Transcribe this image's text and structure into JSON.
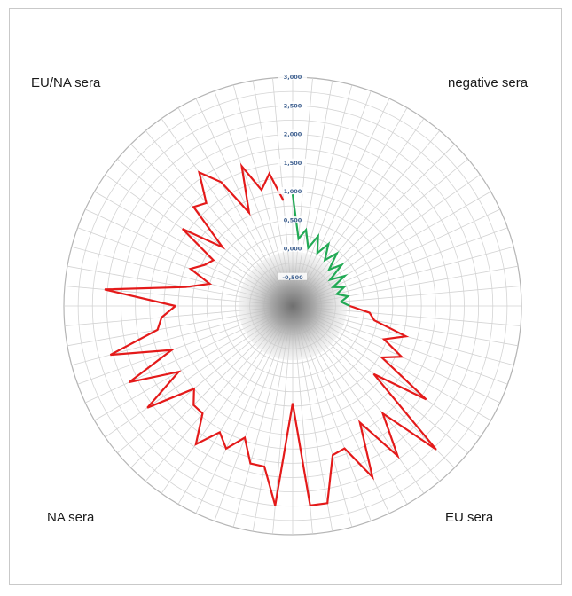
{
  "chart_data": {
    "type": "radar",
    "title": "",
    "corner_labels": {
      "top_left": "EU/NA sera",
      "top_right": "negative sera",
      "bottom_left": "NA sera",
      "bottom_right": "EU sera"
    },
    "radial_axis": {
      "min": -1.0,
      "max": 3.0,
      "ticks": [
        -0.5,
        0.0,
        0.5,
        1.0,
        1.5,
        2.0,
        2.5,
        3.0
      ],
      "tick_labels": [
        "-0,500",
        "0,000",
        "0,500",
        "1,000",
        "1,500",
        "2,000",
        "2,500",
        "3,000"
      ]
    },
    "spokes": 72,
    "grid": true,
    "series": [
      {
        "color": "#22aa55",
        "group": "negative sera",
        "points": [
          {
            "i": 0,
            "v": 0.95
          },
          {
            "i": 1,
            "v": 0.18
          },
          {
            "i": 2,
            "v": 0.35
          },
          {
            "i": 3,
            "v": 0.05
          },
          {
            "i": 4,
            "v": 0.3
          },
          {
            "i": 5,
            "v": 0.02
          },
          {
            "i": 6,
            "v": 0.25
          },
          {
            "i": 7,
            "v": -0.02
          },
          {
            "i": 8,
            "v": 0.2
          },
          {
            "i": 9,
            "v": -0.1
          },
          {
            "i": 10,
            "v": 0.12
          },
          {
            "i": 11,
            "v": -0.2
          },
          {
            "i": 12,
            "v": 0.05
          },
          {
            "i": 13,
            "v": -0.22
          },
          {
            "i": 14,
            "v": -0.05
          },
          {
            "i": 15,
            "v": -0.2
          },
          {
            "i": 16,
            "v": -0.02
          },
          {
            "i": 17,
            "v": -0.15
          },
          {
            "i": 18,
            "v": 0.0
          }
        ]
      },
      {
        "color": "#e41a1a",
        "group": "EU sera",
        "points": [
          {
            "i": 18,
            "v": 0.0
          },
          {
            "i": 19,
            "v": 0.35
          },
          {
            "i": 20,
            "v": 0.45
          },
          {
            "i": 21,
            "v": 1.05
          },
          {
            "i": 22,
            "v": 0.7
          },
          {
            "i": 23,
            "v": 1.1
          },
          {
            "i": 24,
            "v": 0.8
          },
          {
            "i": 25,
            "v": 1.85
          },
          {
            "i": 26,
            "v": 0.85
          },
          {
            "i": 27,
            "v": 2.55
          },
          {
            "i": 28,
            "v": 1.45
          },
          {
            "i": 29,
            "v": 2.2
          },
          {
            "i": 30,
            "v": 1.35
          },
          {
            "i": 31,
            "v": 2.3
          },
          {
            "i": 32,
            "v": 1.65
          },
          {
            "i": 33,
            "v": 1.7
          },
          {
            "i": 34,
            "v": 2.5
          },
          {
            "i": 35,
            "v": 2.5
          },
          {
            "i": 36,
            "v": 0.7
          }
        ]
      },
      {
        "color": "#e41a1a",
        "group": "NA sera",
        "points": [
          {
            "i": 36,
            "v": 0.7
          },
          {
            "i": 37,
            "v": 2.5
          },
          {
            "i": 38,
            "v": 1.85
          },
          {
            "i": 39,
            "v": 1.85
          },
          {
            "i": 40,
            "v": 1.45
          },
          {
            "i": 41,
            "v": 1.75
          },
          {
            "i": 42,
            "v": 1.55
          },
          {
            "i": 43,
            "v": 1.95
          },
          {
            "i": 44,
            "v": 1.45
          },
          {
            "i": 45,
            "v": 1.45
          },
          {
            "i": 46,
            "v": 1.25
          },
          {
            "i": 47,
            "v": 2.1
          },
          {
            "i": 48,
            "v": 1.3
          },
          {
            "i": 49,
            "v": 2.15
          },
          {
            "i": 50,
            "v": 1.25
          },
          {
            "i": 51,
            "v": 2.3
          },
          {
            "i": 52,
            "v": 1.4
          },
          {
            "i": 53,
            "v": 1.3
          },
          {
            "i": 54,
            "v": 1.05
          }
        ]
      },
      {
        "color": "#e41a1a",
        "group": "EU/NA sera",
        "points": [
          {
            "i": 54,
            "v": 1.05
          },
          {
            "i": 55,
            "v": 2.3
          },
          {
            "i": 56,
            "v": 0.9
          },
          {
            "i": 57,
            "v": 0.5
          },
          {
            "i": 58,
            "v": 0.9
          },
          {
            "i": 59,
            "v": 0.7
          },
          {
            "i": 60,
            "v": 0.6
          },
          {
            "i": 61,
            "v": 1.35
          },
          {
            "i": 62,
            "v": 0.6
          },
          {
            "i": 63,
            "v": 1.45
          },
          {
            "i": 64,
            "v": 1.35
          },
          {
            "i": 65,
            "v": 1.85
          },
          {
            "i": 66,
            "v": 1.5
          },
          {
            "i": 67,
            "v": 0.8
          },
          {
            "i": 68,
            "v": 1.6
          },
          {
            "i": 69,
            "v": 1.1
          },
          {
            "i": 70,
            "v": 1.35
          },
          {
            "i": 71,
            "v": 0.85
          }
        ]
      }
    ]
  }
}
